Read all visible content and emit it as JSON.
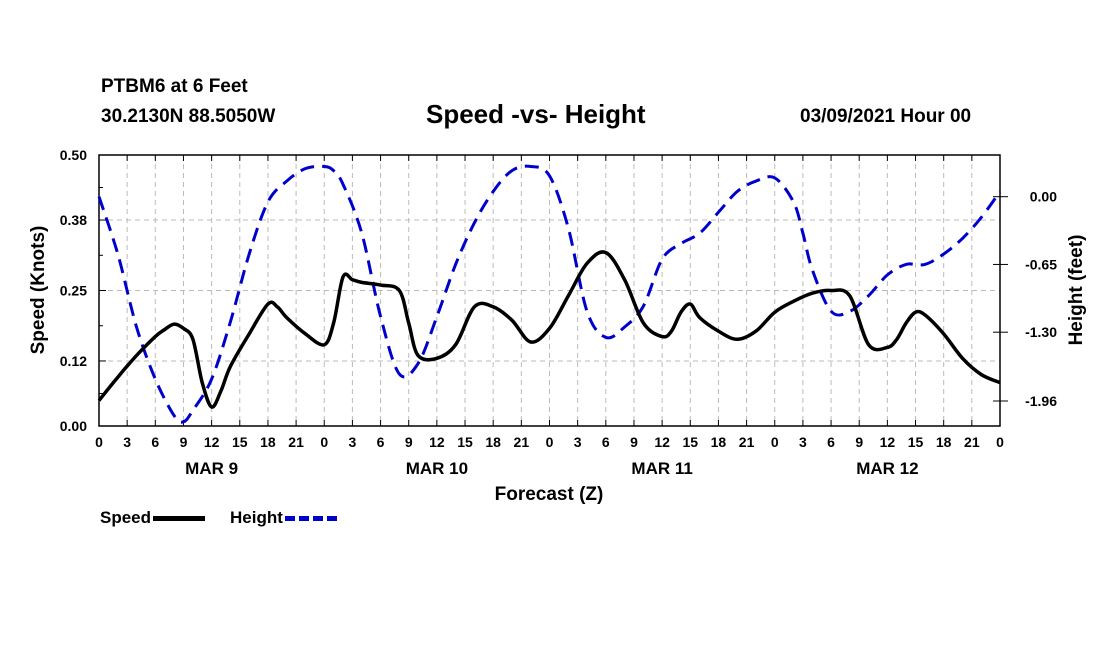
{
  "header": {
    "station": "PTBM6 at 6 Feet",
    "coords": "30.2130N 88.5050W",
    "title": "Speed -vs- Height",
    "timestamp": "03/09/2021 Hour 00"
  },
  "legend": {
    "speed": "Speed",
    "height": "Height"
  },
  "colors": {
    "speed": "#000000",
    "height": "#0000cc",
    "grid": "#bbbbbb"
  },
  "chart_data": {
    "type": "line",
    "title": "Speed -vs- Height",
    "xlabel": "Forecast (Z)",
    "ylabel": "Speed (Knots)",
    "y2label": "Height (feet)",
    "xlim": [
      0,
      96
    ],
    "ylim": [
      0,
      0.5
    ],
    "y2lim": [
      -2.2,
      0.4
    ],
    "grid": true,
    "x_ticks": [
      0,
      3,
      6,
      9,
      12,
      15,
      18,
      21,
      24,
      27,
      30,
      33,
      36,
      39,
      42,
      45,
      48,
      51,
      54,
      57,
      60,
      63,
      66,
      69,
      72,
      75,
      78,
      81,
      84,
      87,
      90,
      93,
      96
    ],
    "x_tick_labels": [
      "0",
      "3",
      "6",
      "9",
      "12",
      "15",
      "18",
      "21",
      "0",
      "3",
      "6",
      "9",
      "12",
      "15",
      "18",
      "21",
      "0",
      "3",
      "6",
      "9",
      "12",
      "15",
      "18",
      "21",
      "0",
      "3",
      "6",
      "9",
      "12",
      "15",
      "18",
      "21",
      "0"
    ],
    "day_labels": [
      {
        "x": 12,
        "label": "MAR 9"
      },
      {
        "x": 36,
        "label": "MAR 10"
      },
      {
        "x": 60,
        "label": "MAR 11"
      },
      {
        "x": 84,
        "label": "MAR 12"
      }
    ],
    "y_ticks": [
      0.0,
      0.12,
      0.25,
      0.38,
      0.5
    ],
    "y_tick_labels": [
      "0.00",
      "0.12",
      "0.25",
      "0.38",
      "0.50"
    ],
    "y2_ticks": [
      0.0,
      -0.65,
      -1.3,
      -1.96
    ],
    "y2_tick_labels": [
      "0.00",
      "-0.65",
      "-1.30",
      "-1.96"
    ],
    "series": [
      {
        "name": "Speed",
        "axis": "left",
        "x": [
          0,
          2,
          4,
          6,
          7,
          8,
          9,
          10,
          11,
          12,
          13,
          14,
          16,
          18,
          19,
          20,
          22,
          24,
          25,
          26,
          27,
          28,
          30,
          32,
          33,
          34,
          36,
          38,
          40,
          42,
          44,
          46,
          48,
          50,
          52,
          54,
          56,
          58,
          60,
          61,
          62,
          63,
          64,
          66,
          68,
          70,
          72,
          74,
          76,
          78,
          80,
          82,
          84,
          85,
          86,
          87,
          88,
          90,
          92,
          94,
          96
        ],
        "values": [
          0.047,
          0.09,
          0.13,
          0.165,
          0.178,
          0.188,
          0.18,
          0.16,
          0.08,
          0.035,
          0.065,
          0.11,
          0.17,
          0.225,
          0.22,
          0.2,
          0.17,
          0.15,
          0.19,
          0.275,
          0.27,
          0.265,
          0.26,
          0.25,
          0.19,
          0.13,
          0.125,
          0.15,
          0.22,
          0.22,
          0.195,
          0.155,
          0.18,
          0.24,
          0.3,
          0.32,
          0.27,
          0.19,
          0.165,
          0.175,
          0.21,
          0.225,
          0.2,
          0.175,
          0.16,
          0.175,
          0.21,
          0.23,
          0.245,
          0.25,
          0.24,
          0.15,
          0.145,
          0.16,
          0.19,
          0.21,
          0.205,
          0.17,
          0.125,
          0.095,
          0.08
        ]
      },
      {
        "name": "Height",
        "axis": "right",
        "x": [
          0,
          2,
          4,
          6,
          8,
          9,
          10,
          12,
          14,
          16,
          18,
          20,
          22,
          24,
          25,
          26,
          28,
          30,
          32,
          34,
          36,
          38,
          40,
          42,
          44,
          46,
          48,
          50,
          52,
          54,
          56,
          58,
          60,
          62,
          64,
          66,
          68,
          70,
          72,
          74,
          75,
          76,
          78,
          80,
          82,
          84,
          86,
          88,
          90,
          92,
          94,
          96
        ],
        "values": [
          0.0,
          -0.55,
          -1.25,
          -1.75,
          -2.1,
          -2.16,
          -2.05,
          -1.75,
          -1.2,
          -0.55,
          -0.05,
          0.15,
          0.27,
          0.29,
          0.25,
          0.12,
          -0.35,
          -1.15,
          -1.7,
          -1.6,
          -1.15,
          -0.65,
          -0.25,
          0.05,
          0.25,
          0.29,
          0.2,
          -0.3,
          -1.1,
          -1.35,
          -1.25,
          -1.05,
          -0.6,
          -0.45,
          -0.35,
          -0.15,
          0.05,
          0.15,
          0.18,
          -0.05,
          -0.35,
          -0.7,
          -1.1,
          -1.1,
          -0.95,
          -0.75,
          -0.65,
          -0.65,
          -0.55,
          -0.4,
          -0.2,
          0.05
        ]
      }
    ]
  }
}
